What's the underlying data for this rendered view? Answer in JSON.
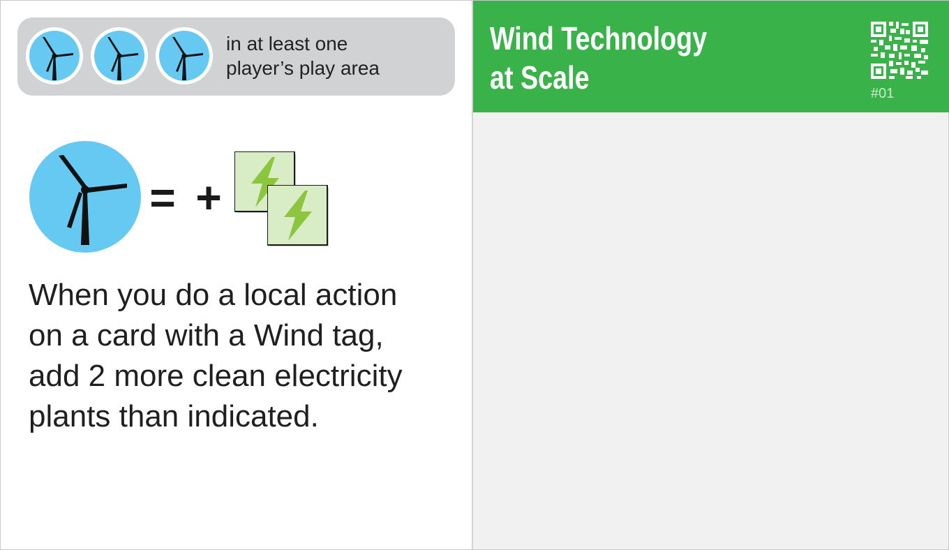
{
  "card": {
    "title_line1": "Wind Technology",
    "title_line2": "at Scale",
    "number": "#01",
    "header_color": "#39b24a",
    "requirement": {
      "icons": [
        "wind-turbine-icon",
        "wind-turbine-icon",
        "wind-turbine-icon"
      ],
      "text_line1": "in at least one",
      "text_line2": "player’s play area"
    },
    "effect": {
      "icon": "wind-turbine-icon",
      "equals": "=",
      "plus": "+",
      "reward_icons": [
        "clean-electricity-card-icon",
        "clean-electricity-card-icon"
      ],
      "text_lines": [
        "When you do a local action",
        "on a card with a Wind tag,",
        "add 2 more clean electricity",
        "plants than indicated."
      ]
    },
    "colors": {
      "wind_badge": "#66c9f1",
      "electricity_card": "#d8ecc6",
      "lightning": "#8cc63f",
      "requirement_bg": "#d1d2d3"
    }
  }
}
